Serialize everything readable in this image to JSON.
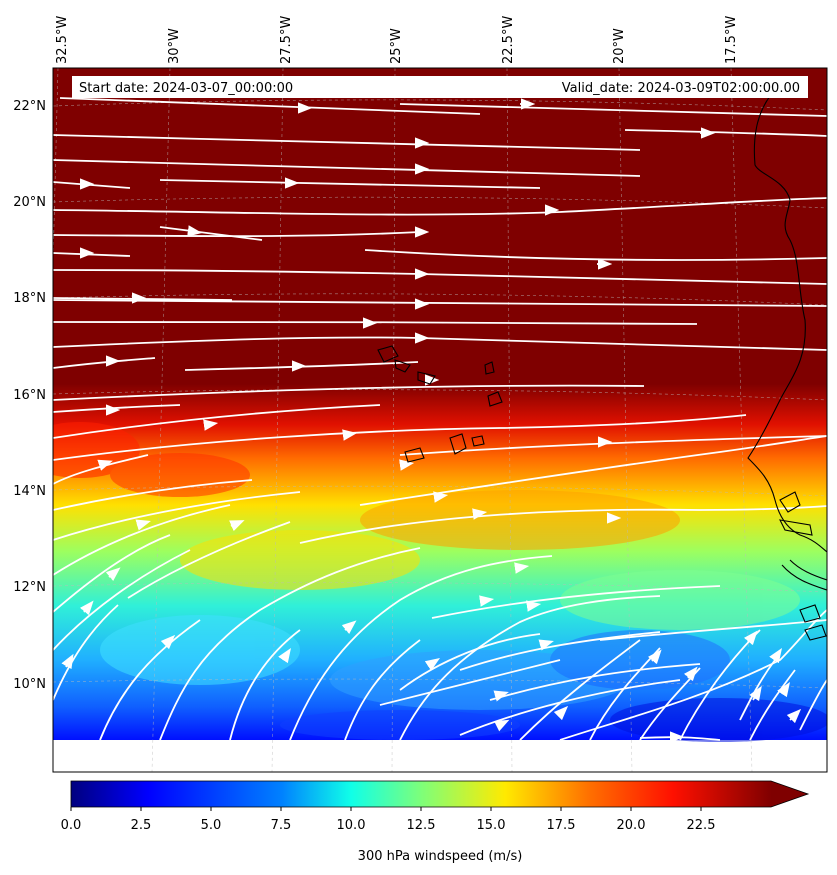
{
  "header": {
    "start_date": "Start date: 2024-03-07_00:00:00",
    "valid_date": "Valid_date: 2024-03-09T02:00:00.00"
  },
  "map": {
    "lon_labels": [
      "32.5°W",
      "30°W",
      "27.5°W",
      "25°W",
      "22.5°W",
      "20°W",
      "17.5°W"
    ],
    "lat_labels": [
      "22°N",
      "20°N",
      "18°N",
      "16°N",
      "14°N",
      "12°N",
      "10°N"
    ],
    "field": "300 hPa windspeed",
    "streamline_color": "#ffffff",
    "coastline_color": "#000000"
  },
  "colorbar": {
    "label": "300 hPa windspeed (m/s)",
    "min": 0,
    "max": 25,
    "extend": "max",
    "ticks": [
      "0.0",
      "2.5",
      "5.0",
      "7.5",
      "10.0",
      "12.5",
      "15.0",
      "17.5",
      "20.0",
      "22.5"
    ],
    "colormap": [
      "#00007f",
      "#0000ff",
      "#007fff",
      "#00ffff",
      "#7fff7f",
      "#ffff00",
      "#ff7f00",
      "#ff0000",
      "#7f0000"
    ]
  }
}
